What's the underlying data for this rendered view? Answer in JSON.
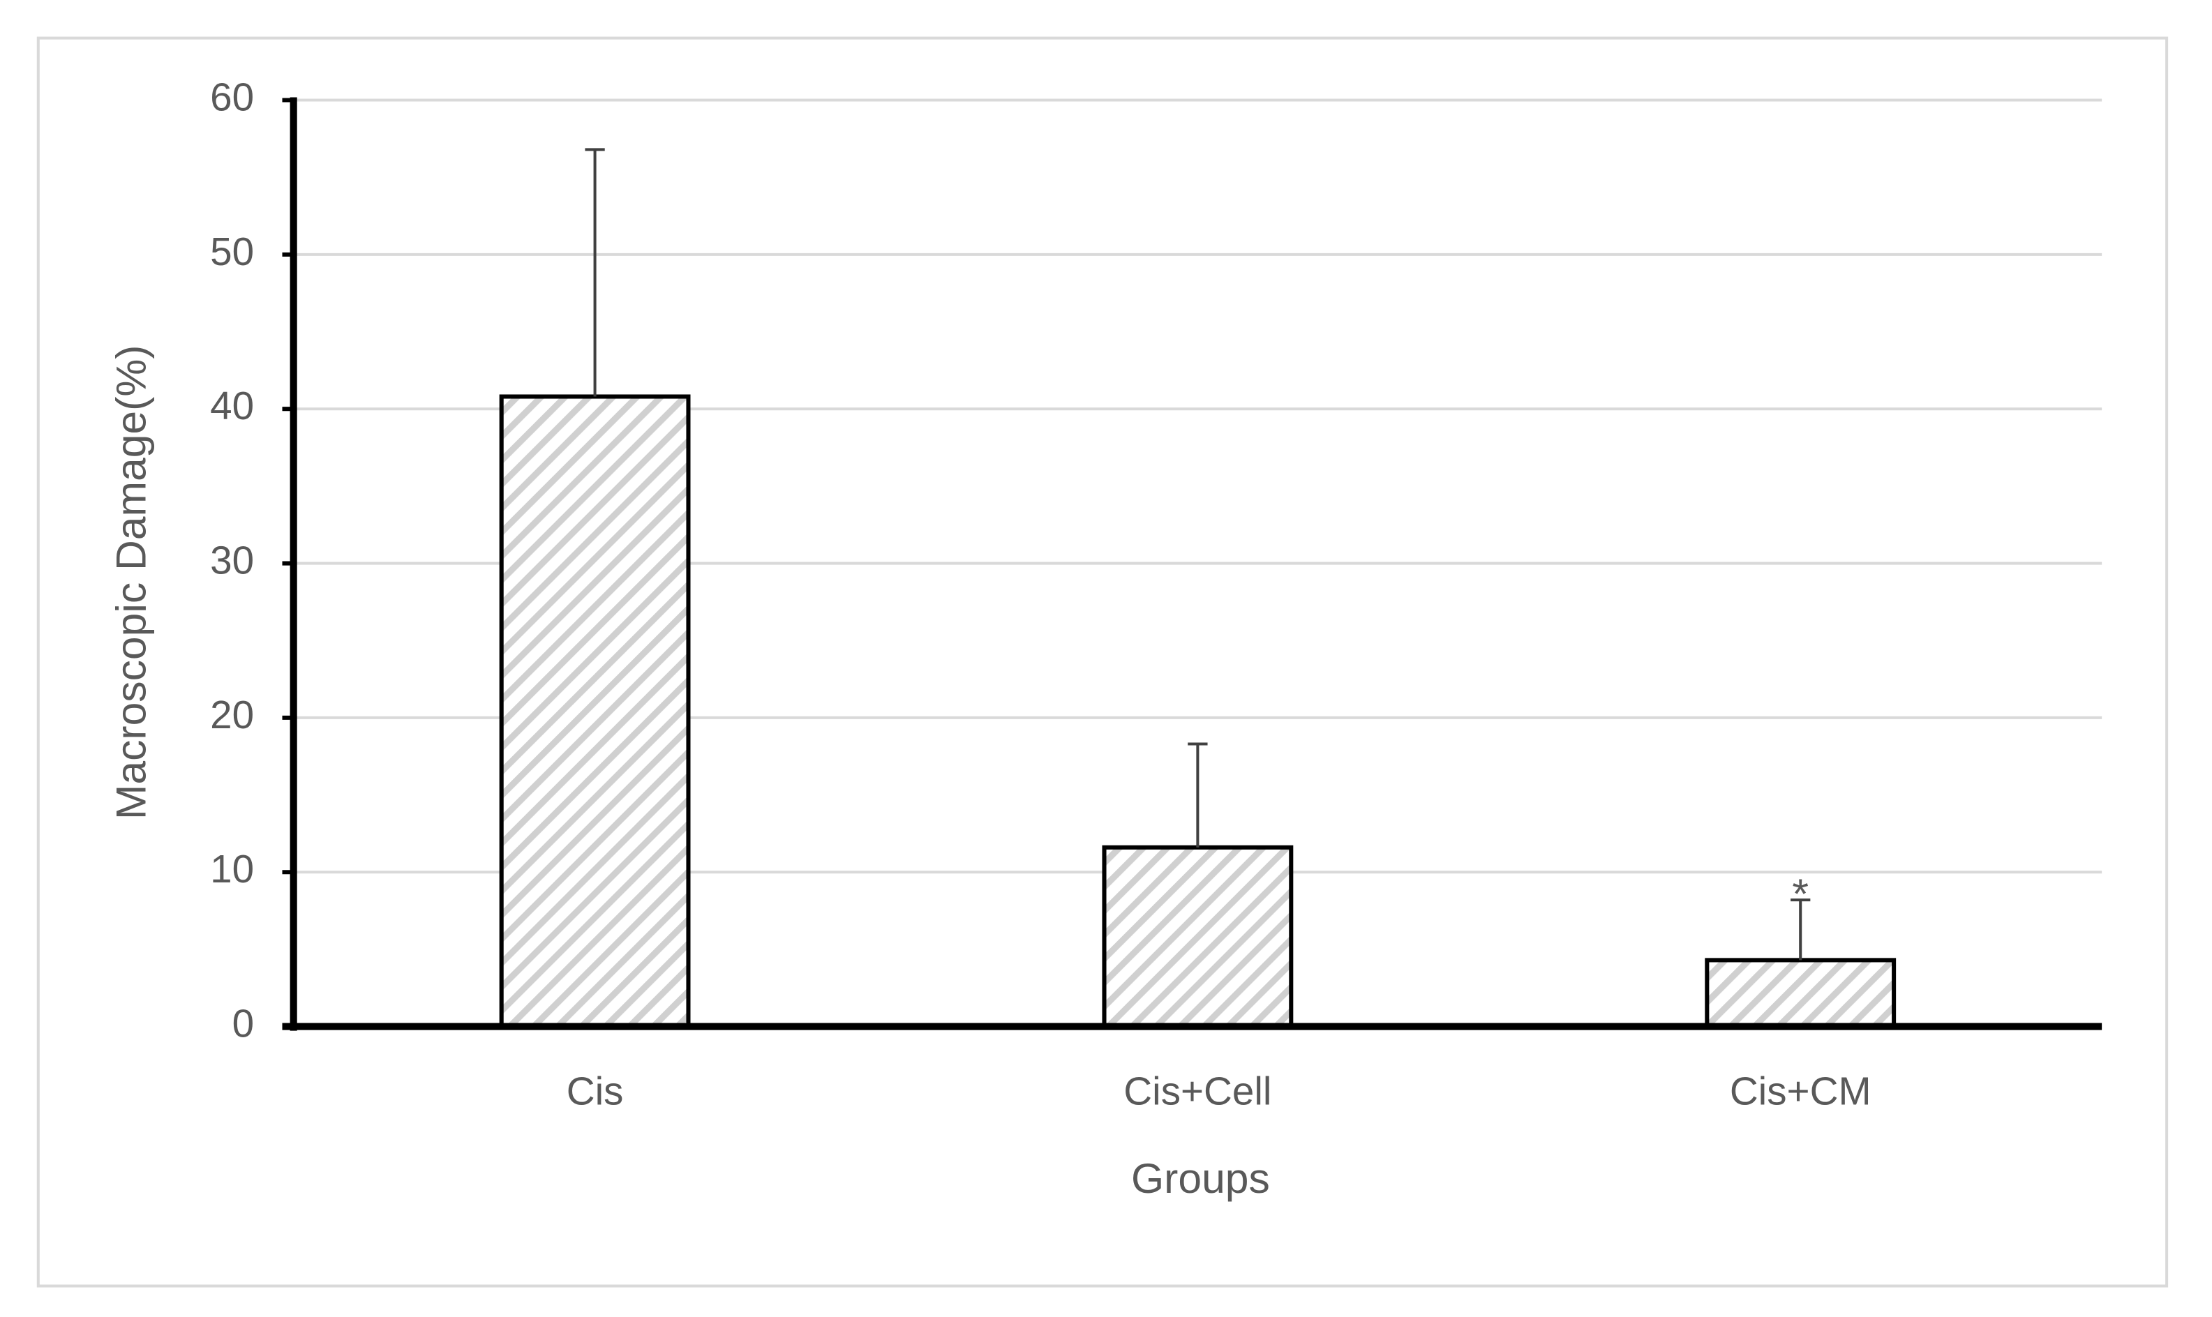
{
  "chart_data": {
    "type": "bar",
    "x_label": "Groups",
    "y_label": "Macroscopic Damage(%)",
    "categories": [
      "Cis",
      "Cis+Cell",
      "Cis+CM"
    ],
    "series": [
      {
        "name": "Macroscopic Damage",
        "color": "#d0d0d0",
        "values": [
          40.8,
          11.6,
          4.3
        ],
        "errors": [
          16.0,
          6.7,
          3.9
        ]
      }
    ],
    "annotations": [
      {
        "text": "*",
        "category": "Cis+CM"
      }
    ],
    "ylim": [
      0,
      60
    ],
    "yticks": [
      0,
      10,
      20,
      30,
      40,
      50,
      60
    ],
    "grid": true,
    "hatch": true
  }
}
